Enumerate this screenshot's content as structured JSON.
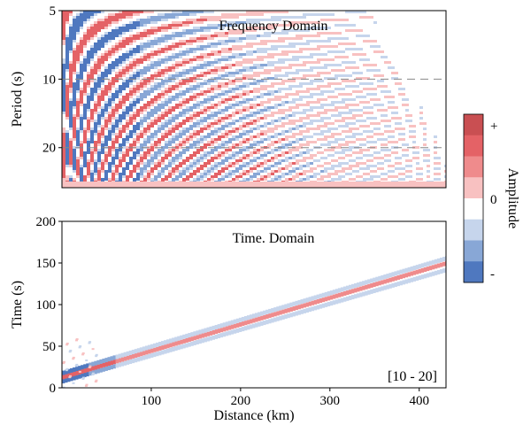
{
  "chart_data": [
    {
      "type": "heatmap",
      "title": "Frequency Domain",
      "xlabel": "",
      "ylabel": "Period (s)",
      "xlim": [
        0,
        430
      ],
      "ylim": [
        5,
        30
      ],
      "y_scale": "log",
      "y_inverted": true,
      "y_ticks": [
        5,
        10,
        20
      ],
      "x_ticks": [],
      "reference_lines_y": [
        10,
        20
      ],
      "pattern": "dispersive red/blue fringes curving from short distance at long period toward long distance at short period; strongest red and blue near the left edge"
    },
    {
      "type": "heatmap",
      "title": "Time. Domain",
      "xlabel": "Distance (km)",
      "ylabel": "Time (s)",
      "xlim": [
        0,
        430
      ],
      "ylim": [
        0,
        200
      ],
      "x_ticks": [
        100,
        200,
        300,
        400
      ],
      "y_ticks": [
        0,
        50,
        100,
        150,
        200
      ],
      "annotation": "[10 - 20]",
      "bands": [
        {
          "color": "blue",
          "distance_km": [
            0,
            430
          ],
          "time_s": [
            8,
            142
          ]
        },
        {
          "color": "red",
          "distance_km": [
            0,
            430
          ],
          "time_s": [
            13,
            150
          ]
        },
        {
          "color": "blue",
          "distance_km": [
            0,
            430
          ],
          "time_s": [
            18,
            156
          ]
        }
      ]
    }
  ],
  "colorbar": {
    "label": "Amplitude",
    "tick_labels": [
      "+",
      "0",
      "-"
    ],
    "colors": [
      "#c94f52",
      "#e46266",
      "#ef8b8c",
      "#f8c1c1",
      "#ffffff",
      "#c6d5ec",
      "#88a7d6",
      "#4f78bf"
    ]
  }
}
